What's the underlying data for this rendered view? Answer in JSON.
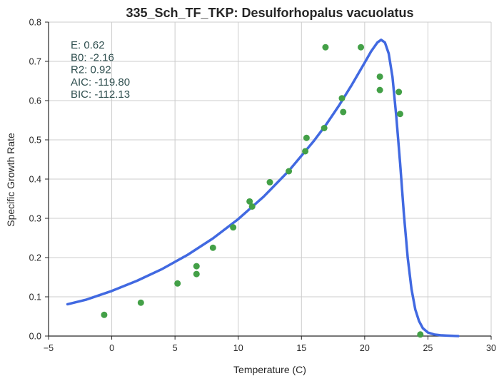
{
  "chart_data": {
    "type": "scatter",
    "title": "335_Sch_TF_TKP: Desulforhopalus vacuolatus",
    "xlabel": "Temperature (C)",
    "ylabel": "Specific Growth Rate",
    "xlim": [
      -5,
      30
    ],
    "ylim": [
      0,
      0.8
    ],
    "xticks": [
      -5,
      0,
      5,
      10,
      15,
      20,
      25,
      30
    ],
    "xtick_labels": [
      "−5",
      "0",
      "5",
      "10",
      "15",
      "20",
      "25",
      "30"
    ],
    "yticks": [
      0.0,
      0.1,
      0.2,
      0.3,
      0.4,
      0.5,
      0.6,
      0.7,
      0.8
    ],
    "ytick_labels": [
      "0.0",
      "0.1",
      "0.2",
      "0.3",
      "0.4",
      "0.5",
      "0.6",
      "0.7",
      "0.8"
    ],
    "grid": true,
    "annotations": [
      "E:  0.62",
      "B0:  -2.16",
      "R2:  0.92",
      "AIC: -119.80",
      "BIC: -112.13"
    ],
    "series": [
      {
        "kind": "scatter",
        "color": "#43a047",
        "x": [
          -0.6,
          2.3,
          5.2,
          6.7,
          6.7,
          8.0,
          9.6,
          10.9,
          11.1,
          12.5,
          14.0,
          15.3,
          15.4,
          16.8,
          16.9,
          18.2,
          18.3,
          19.7,
          21.2,
          21.2,
          22.7,
          22.8,
          24.4
        ],
        "y": [
          0.054,
          0.085,
          0.134,
          0.178,
          0.158,
          0.225,
          0.277,
          0.343,
          0.33,
          0.392,
          0.42,
          0.471,
          0.505,
          0.53,
          0.736,
          0.606,
          0.571,
          0.736,
          0.661,
          0.627,
          0.622,
          0.566,
          0.004
        ]
      },
      {
        "kind": "line",
        "color": "#4169e1",
        "x": [
          -3.5,
          -2,
          0,
          2,
          4,
          6,
          8,
          10,
          12,
          14,
          16,
          17,
          18,
          19,
          20,
          20.5,
          21,
          21.3,
          21.6,
          21.9,
          22.2,
          22.5,
          22.8,
          23.1,
          23.4,
          23.7,
          24.0,
          24.3,
          24.6,
          25.0,
          25.5,
          26.0,
          26.5,
          27.4
        ],
        "y": [
          0.081,
          0.093,
          0.115,
          0.141,
          0.171,
          0.207,
          0.249,
          0.298,
          0.355,
          0.421,
          0.498,
          0.541,
          0.589,
          0.641,
          0.697,
          0.725,
          0.748,
          0.755,
          0.748,
          0.72,
          0.66,
          0.56,
          0.44,
          0.31,
          0.2,
          0.12,
          0.068,
          0.038,
          0.02,
          0.009,
          0.004,
          0.002,
          0.001,
          0.0
        ]
      }
    ]
  }
}
